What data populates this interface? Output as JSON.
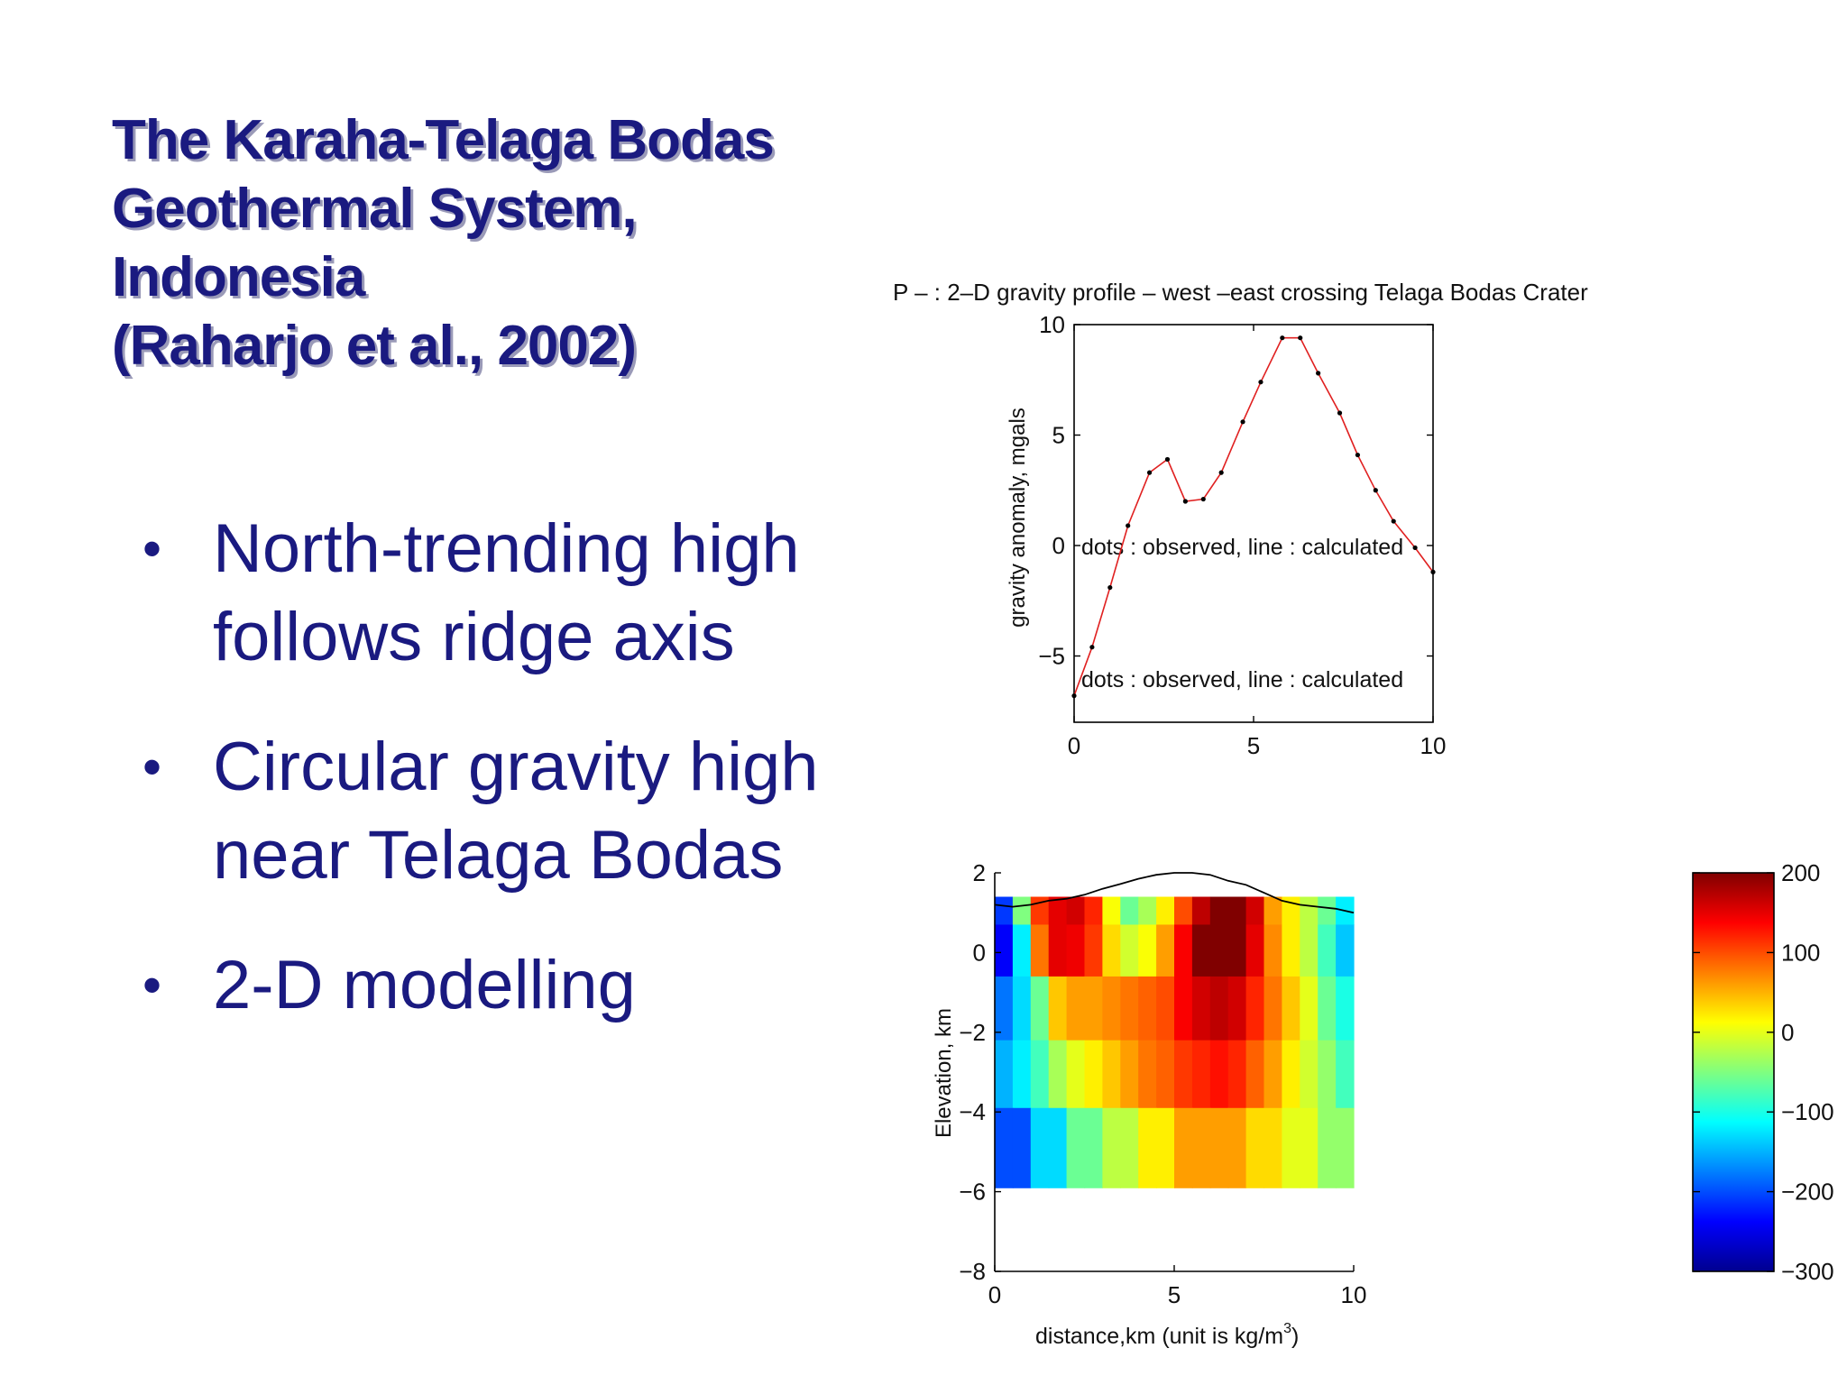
{
  "slide": {
    "title_lines": [
      "The Karaha-Telaga Bodas",
      "Geothermal System,",
      "Indonesia",
      "(Raharjo et al., 2002)"
    ],
    "bullets": [
      {
        "lines": [
          "North-trending high",
          "follows ridge axis"
        ]
      },
      {
        "lines": [
          "Circular gravity high",
          "near Telaga Bodas"
        ]
      },
      {
        "lines": [
          "2-D modelling"
        ]
      }
    ],
    "bullet_glyph": "•",
    "text_color": "#1a1a80"
  },
  "chart_data": [
    {
      "type": "line",
      "title": "P – : 2–D gravity profile – west –east crossing Telaga Bodas Crater",
      "xlabel": "",
      "ylabel": "gravity anomaly, mgals",
      "xlim": [
        0,
        10
      ],
      "ylim": [
        -8,
        10
      ],
      "xticks": [
        "0",
        "5",
        "10"
      ],
      "yticks": [
        "10",
        "5",
        "0",
        "−5"
      ],
      "ytick_values": [
        10,
        5,
        0,
        -5
      ],
      "xtick_values": [
        0,
        5,
        10
      ],
      "annotations": [
        {
          "text": "dots : observed, line : calculated",
          "x": 0.2,
          "y": 0
        },
        {
          "text": "dots : observed, line : calculated",
          "x": 0.2,
          "y": -6
        }
      ],
      "series": [
        {
          "line_color": "#e02020",
          "marker_color": "#000000",
          "x": [
            0,
            0.5,
            1.0,
            1.5,
            2.1,
            2.6,
            3.1,
            3.6,
            4.1,
            4.7,
            5.2,
            5.8,
            6.3,
            6.8,
            7.4,
            7.9,
            8.4,
            8.9,
            9.5,
            10.0
          ],
          "y": [
            -6.8,
            -4.6,
            -1.9,
            0.9,
            3.3,
            3.9,
            2.0,
            2.1,
            3.3,
            5.6,
            7.4,
            9.4,
            9.4,
            7.8,
            6.0,
            4.1,
            2.5,
            1.1,
            -0.1,
            -1.2
          ]
        }
      ]
    },
    {
      "type": "heatmap",
      "title": "",
      "xlabel": "distance,km (unit is kg/m",
      "xlabel_sup": "3",
      "xlabel_tail": ")",
      "ylabel": "Elevation, km",
      "xlim": [
        0,
        10
      ],
      "ylim": [
        -8,
        2
      ],
      "xticks": [
        "0",
        "5",
        "10"
      ],
      "xtick_values": [
        0,
        5,
        10
      ],
      "yticks": [
        "2",
        "0",
        "−2",
        "−4",
        "−6",
        "−8"
      ],
      "ytick_values": [
        2,
        0,
        -2,
        -4,
        -6,
        -8
      ],
      "x_edges": [
        0,
        0.5,
        1.0,
        1.5,
        2.0,
        2.5,
        3.0,
        3.5,
        4.0,
        4.5,
        5.0,
        5.5,
        6.0,
        6.5,
        7.0,
        7.5,
        8.0,
        8.5,
        9.0,
        9.5,
        10.0
      ],
      "layers": [
        {
          "top": 1.4,
          "bottom": 0.7,
          "values": [
            -210,
            -50,
            110,
            150,
            160,
            120,
            10,
            -60,
            -30,
            20,
            100,
            170,
            230,
            220,
            160,
            60,
            20,
            -20,
            -60,
            -120
          ]
        },
        {
          "top": 0.7,
          "bottom": -0.6,
          "values": [
            -240,
            -120,
            80,
            150,
            145,
            110,
            30,
            -10,
            10,
            60,
            140,
            200,
            230,
            210,
            150,
            70,
            20,
            -20,
            -80,
            -140
          ]
        },
        {
          "top": -0.6,
          "bottom": -2.2,
          "values": [
            -180,
            -130,
            -60,
            40,
            60,
            60,
            70,
            80,
            90,
            100,
            140,
            160,
            170,
            160,
            120,
            80,
            40,
            0,
            -60,
            -100
          ]
        },
        {
          "top": -2.2,
          "bottom": -3.9,
          "values": [
            -150,
            -120,
            -80,
            -30,
            0,
            20,
            40,
            60,
            80,
            90,
            110,
            120,
            130,
            120,
            90,
            60,
            20,
            -10,
            -40,
            -80
          ]
        },
        {
          "top": -3.9,
          "bottom": -5.9,
          "values": [
            -200,
            -200,
            -130,
            -130,
            -60,
            -60,
            -20,
            -20,
            20,
            20,
            60,
            60,
            60,
            60,
            30,
            30,
            0,
            0,
            -40,
            -40
          ]
        }
      ],
      "topography": {
        "x": [
          0,
          0.5,
          1.0,
          1.5,
          2.0,
          2.5,
          3.0,
          3.5,
          4.0,
          4.5,
          5.0,
          5.5,
          6.0,
          6.5,
          7.0,
          7.5,
          8.0,
          8.5,
          9.0,
          9.5,
          10.0
        ],
        "y": [
          1.2,
          1.15,
          1.2,
          1.3,
          1.35,
          1.45,
          1.6,
          1.72,
          1.85,
          1.95,
          2.0,
          2.0,
          1.95,
          1.8,
          1.7,
          1.5,
          1.3,
          1.2,
          1.15,
          1.1,
          1.0
        ]
      },
      "colorbar": {
        "min": -300,
        "max": 200,
        "ticks": [
          "200",
          "100",
          "0",
          "−100",
          "−200",
          "−300"
        ],
        "tick_values": [
          200,
          100,
          0,
          -100,
          -200,
          -300
        ]
      }
    }
  ]
}
